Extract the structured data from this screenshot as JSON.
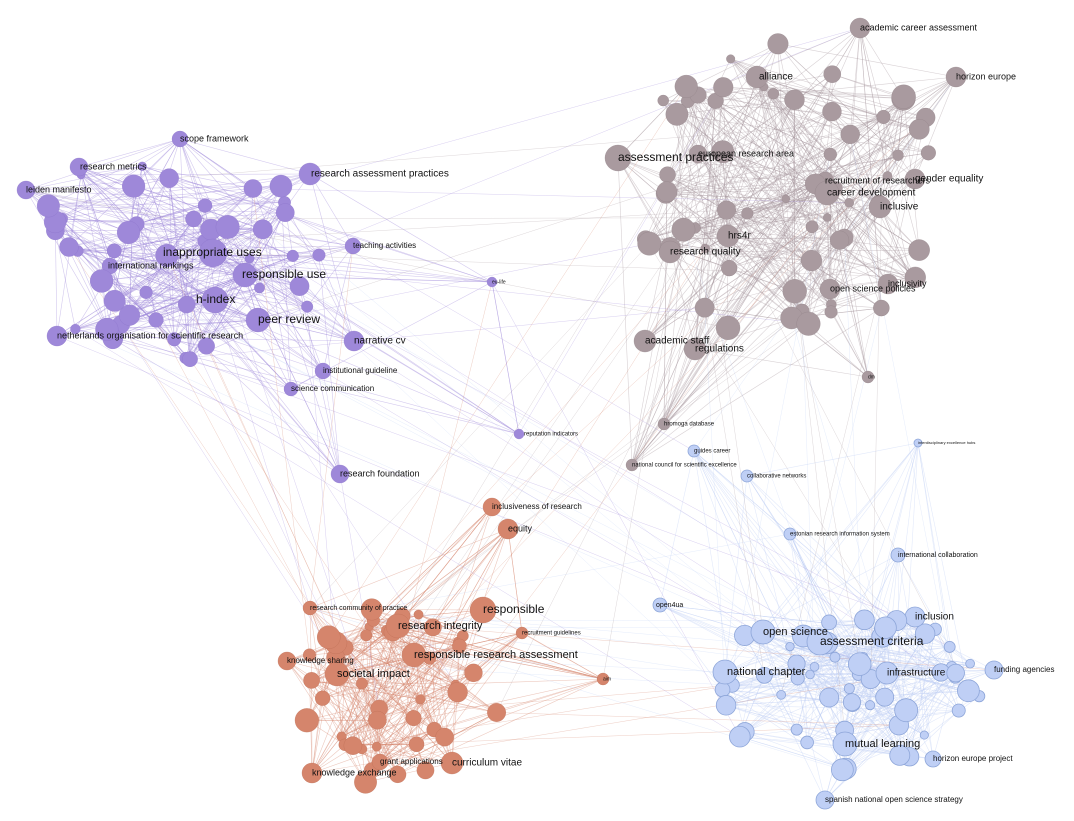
{
  "clusters": [
    {
      "color": "#9e88d9",
      "nodes": [
        {
          "label": "scope framework"
        },
        {
          "label": "research metrics"
        },
        {
          "label": "leiden manifesto"
        },
        {
          "label": "research assessment practices"
        },
        {
          "label": "teaching activities"
        },
        {
          "label": "inappropriate uses"
        },
        {
          "label": "international rankings"
        },
        {
          "label": "responsible use"
        },
        {
          "label": "h-index"
        },
        {
          "label": "peer review"
        },
        {
          "label": "netherlands organisation for scientific research"
        },
        {
          "label": "narrative cv"
        },
        {
          "label": "institutional guideline"
        },
        {
          "label": "science communication"
        },
        {
          "label": "research foundation"
        },
        {
          "label": "eu-life"
        },
        {
          "label": "reputation indicators"
        }
      ]
    },
    {
      "color": "#a99a9f",
      "nodes": [
        {
          "label": "academic career assessment"
        },
        {
          "label": "alliance"
        },
        {
          "label": "horizon europe"
        },
        {
          "label": "assessment practices"
        },
        {
          "label": "european research area"
        },
        {
          "label": "recruitment of researchers"
        },
        {
          "label": "gender equality"
        },
        {
          "label": "career development"
        },
        {
          "label": "inclusive"
        },
        {
          "label": "hrs4r"
        },
        {
          "label": "research quality"
        },
        {
          "label": "inclusivity"
        },
        {
          "label": "open science policies"
        },
        {
          "label": "academic staff"
        },
        {
          "label": "regulations"
        },
        {
          "label": "hromoga database"
        },
        {
          "label": "national council for scientific excellence"
        },
        {
          "label": "dm"
        }
      ]
    },
    {
      "color": "#bfcff5",
      "nodes": [
        {
          "label": "guides career"
        },
        {
          "label": "collaborative networks"
        },
        {
          "label": "interdisciplinary excellence hubs"
        },
        {
          "label": "estonian research information system"
        },
        {
          "label": "international collaboration"
        },
        {
          "label": "open4ua"
        },
        {
          "label": "inclusion"
        },
        {
          "label": "open science"
        },
        {
          "label": "assessment criteria"
        },
        {
          "label": "national chapter"
        },
        {
          "label": "infrastructure"
        },
        {
          "label": "funding agencies"
        },
        {
          "label": "mutual learning"
        },
        {
          "label": "horizon europe project"
        },
        {
          "label": "spanish national open science strategy"
        }
      ]
    },
    {
      "color": "#d5856c",
      "nodes": [
        {
          "label": "inclusiveness of research"
        },
        {
          "label": "equity"
        },
        {
          "label": "research community of practice"
        },
        {
          "label": "responsible"
        },
        {
          "label": "recruitment guidelines"
        },
        {
          "label": "research integrity"
        },
        {
          "label": "responsible research assessment"
        },
        {
          "label": "knowledge sharing"
        },
        {
          "label": "societal impact"
        },
        {
          "label": "aim"
        },
        {
          "label": "curriculum vitae"
        },
        {
          "label": "grant applications"
        },
        {
          "label": "knowledge exchange"
        }
      ]
    }
  ]
}
